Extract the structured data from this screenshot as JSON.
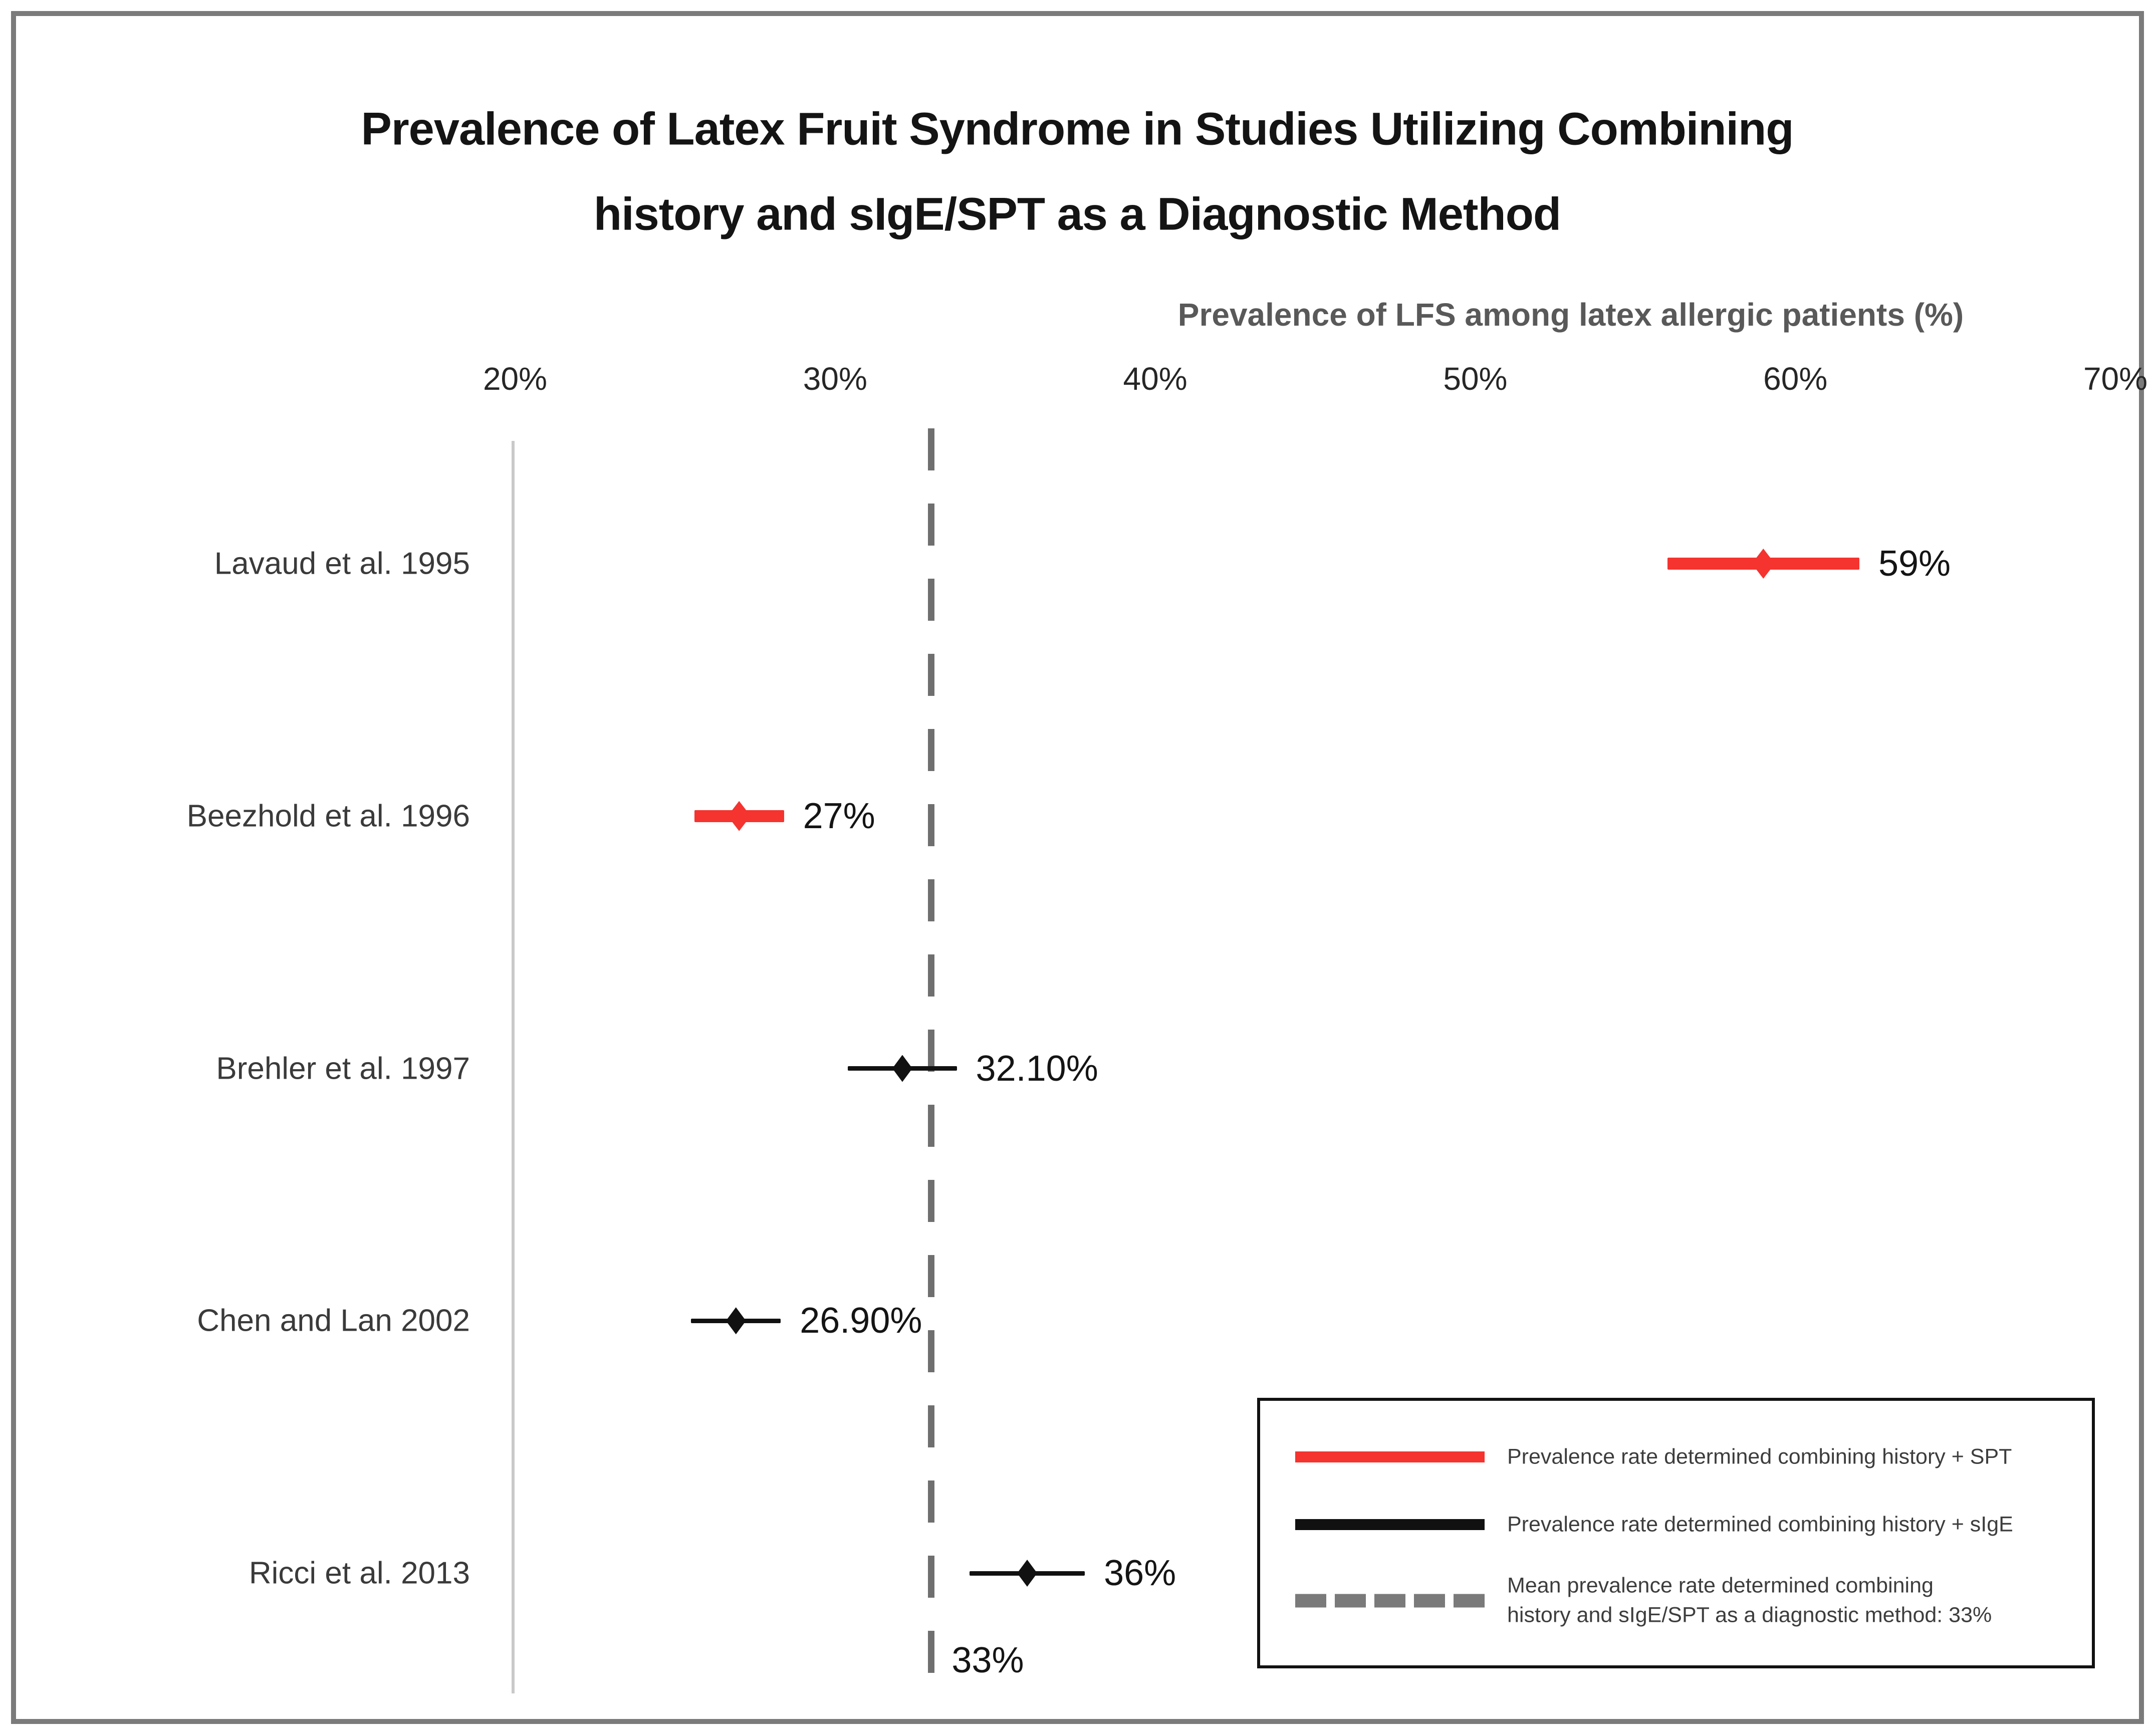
{
  "title": {
    "line1": "Prevalence of Latex Fruit Syndrome in Studies Utilizing Combining",
    "line2": "history and sIgE/SPT as  a Diagnostic Method"
  },
  "chart_data": {
    "type": "scatter",
    "subtype": "forest-plot-dot-and-whisker",
    "title": "Prevalence of Latex Fruit Syndrome in Studies Utilizing Combining history and sIgE/SPT as  a Diagnostic Method",
    "xlabel": "Prevalence of LFS among latex allergic patients (%)",
    "ylabel": "",
    "xlim": [
      20,
      70
    ],
    "grid": false,
    "x_axis": {
      "tick_labels": [
        "20%",
        "30%",
        "40%",
        "50%",
        "60%",
        "70%"
      ],
      "tick_values": [
        20,
        30,
        40,
        50,
        60,
        70
      ]
    },
    "points": [
      {
        "study": "Lavaud et al. 1995",
        "value": 59,
        "error": 3.0,
        "label": "59%",
        "series": "history + SPT",
        "color_key": "spt"
      },
      {
        "study": "Beezhold et al. 1996",
        "value": 27,
        "error": 1.4,
        "label": "27%",
        "series": "history + SPT",
        "color_key": "spt"
      },
      {
        "study": "Brehler et al. 1997",
        "value": 32.1,
        "error": 1.7,
        "label": "32.10%",
        "series": "history + sIgE",
        "color_key": "sige"
      },
      {
        "study": "Chen and Lan 2002",
        "value": 26.9,
        "error": 1.4,
        "label": "26.90%",
        "series": "history + sIgE",
        "color_key": "sige"
      },
      {
        "study": "Ricci et al. 2013",
        "value": 36,
        "error": 1.8,
        "label": "36%",
        "series": "history + sIgE",
        "color_key": "sige"
      }
    ],
    "mean_line": {
      "value": 33,
      "label": "33%"
    }
  },
  "legend": {
    "items": [
      {
        "style": "solid-red",
        "label": "Prevalence rate determined combining history + SPT"
      },
      {
        "style": "solid-black",
        "label": "Prevalence rate determined combining history + sIgE"
      },
      {
        "style": "dashed-gray",
        "label": "Mean prevalence rate determined combining\nhistory and sIgE/SPT as a diagnostic method: 33%"
      }
    ]
  },
  "colors": {
    "spt": "#f5332f",
    "sige": "#111111",
    "mean_dash": "#6f6f6f",
    "axis_line": "#c9c9c9",
    "frame": "#7b7b7b",
    "axis_title_text": "#595959",
    "tick_text": "#262626",
    "study_text": "#3a3a3a",
    "value_text": "#141414"
  }
}
